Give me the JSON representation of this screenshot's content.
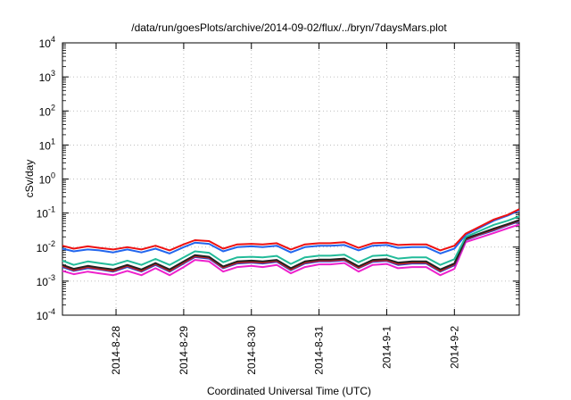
{
  "chart_data": {
    "type": "line",
    "title": "/data/run/goesPlots/archive/2014-09-02/flux/../bryn/7daysMars.plot",
    "xlabel": "Coordinated Universal Time (UTC)",
    "ylabel": "cSv/day",
    "yscale": "log",
    "ylim": [
      0.0001,
      10000
    ],
    "y_tick_labels": [
      {
        "base": "10",
        "exp": "-4"
      },
      {
        "base": "10",
        "exp": "-3"
      },
      {
        "base": "10",
        "exp": "-2"
      },
      {
        "base": "10",
        "exp": "-1"
      },
      {
        "base": "10",
        "exp": "0"
      },
      {
        "base": "10",
        "exp": "1"
      },
      {
        "base": "10",
        "exp": "2"
      },
      {
        "base": "10",
        "exp": "3"
      },
      {
        "base": "10",
        "exp": "4"
      }
    ],
    "x_ticks": [
      "2014-8-28",
      "2014-8-29",
      "2014-8-30",
      "2014-8-31",
      "2014-9-1",
      "2014-9-2"
    ],
    "xlim": [
      "2014-08-27 05:00",
      "2014-09-02 23:00"
    ],
    "grid": true,
    "x": [
      "08-27 05:00",
      "08-27 09:00",
      "08-27 14:00",
      "08-27 18:00",
      "08-27 23:00",
      "08-28 04:00",
      "08-28 09:00",
      "08-28 14:00",
      "08-28 19:00",
      "08-29 00:00",
      "08-29 04:00",
      "08-29 09:00",
      "08-29 14:00",
      "08-29 19:00",
      "08-30 00:00",
      "08-30 04:00",
      "08-30 09:00",
      "08-30 14:00",
      "08-30 19:00",
      "08-31 00:00",
      "08-31 04:00",
      "08-31 09:00",
      "08-31 14:00",
      "08-31 19:00",
      "09-01 00:00",
      "09-01 04:00",
      "09-01 09:00",
      "09-01 14:00",
      "09-01 19:00",
      "09-02 00:00",
      "09-02 04:00",
      "09-02 09:00",
      "09-02 14:00",
      "09-02 19:00",
      "09-02 23:00"
    ],
    "series": [
      {
        "color": "#ee1111",
        "values": [
          0.011,
          0.009,
          0.0105,
          0.0095,
          0.0085,
          0.01,
          0.0085,
          0.011,
          0.008,
          0.012,
          0.016,
          0.015,
          0.009,
          0.012,
          0.0125,
          0.012,
          0.013,
          0.0085,
          0.012,
          0.013,
          0.013,
          0.014,
          0.0095,
          0.013,
          0.0135,
          0.0115,
          0.012,
          0.012,
          0.008,
          0.011,
          0.025,
          0.04,
          0.065,
          0.09,
          0.13
        ]
      },
      {
        "color": "#2266ee",
        "values": [
          0.009,
          0.0075,
          0.0085,
          0.008,
          0.007,
          0.0085,
          0.007,
          0.009,
          0.0065,
          0.01,
          0.0135,
          0.0125,
          0.0075,
          0.01,
          0.0105,
          0.01,
          0.011,
          0.007,
          0.01,
          0.011,
          0.011,
          0.0115,
          0.008,
          0.011,
          0.0115,
          0.0095,
          0.01,
          0.01,
          0.0065,
          0.009,
          0.023,
          0.037,
          0.06,
          0.085,
          0.12
        ]
      },
      {
        "color": "#22bb99",
        "values": [
          0.004,
          0.003,
          0.0038,
          0.0034,
          0.003,
          0.004,
          0.003,
          0.0045,
          0.003,
          0.005,
          0.0075,
          0.0068,
          0.0036,
          0.005,
          0.0052,
          0.005,
          0.0055,
          0.0032,
          0.005,
          0.0056,
          0.0056,
          0.006,
          0.0036,
          0.0055,
          0.0058,
          0.0046,
          0.005,
          0.005,
          0.003,
          0.0044,
          0.02,
          0.03,
          0.045,
          0.06,
          0.08
        ]
      },
      {
        "color": "#222222",
        "values": [
          0.003,
          0.0023,
          0.0028,
          0.0025,
          0.0022,
          0.003,
          0.0022,
          0.0034,
          0.0022,
          0.0038,
          0.0058,
          0.0052,
          0.0027,
          0.0038,
          0.004,
          0.0038,
          0.0042,
          0.0024,
          0.0038,
          0.0043,
          0.0043,
          0.0046,
          0.0027,
          0.0042,
          0.0044,
          0.0035,
          0.0038,
          0.0038,
          0.0022,
          0.0033,
          0.018,
          0.025,
          0.035,
          0.048,
          0.062
        ]
      },
      {
        "color": "#cc2222",
        "values": [
          0.0028,
          0.0021,
          0.0026,
          0.0023,
          0.002,
          0.0028,
          0.002,
          0.0032,
          0.002,
          0.0035,
          0.0054,
          0.0049,
          0.0025,
          0.0035,
          0.0037,
          0.0035,
          0.0039,
          0.0022,
          0.0035,
          0.004,
          0.004,
          0.0043,
          0.0025,
          0.0039,
          0.0041,
          0.0032,
          0.0035,
          0.0035,
          0.002,
          0.0031,
          0.017,
          0.024,
          0.033,
          0.046,
          0.06
        ]
      },
      {
        "color": "#2244cc",
        "values": [
          0.0026,
          0.002,
          0.0024,
          0.0022,
          0.0019,
          0.0026,
          0.0019,
          0.003,
          0.0019,
          0.0033,
          0.0051,
          0.0046,
          0.0024,
          0.0033,
          0.0035,
          0.0033,
          0.0037,
          0.0021,
          0.0033,
          0.0038,
          0.0038,
          0.0041,
          0.0024,
          0.0037,
          0.0039,
          0.003,
          0.0033,
          0.0033,
          0.0019,
          0.0029,
          0.016,
          0.023,
          0.031,
          0.044,
          0.057
        ]
      },
      {
        "color": "#ee22cc",
        "values": [
          0.002,
          0.0016,
          0.0019,
          0.0017,
          0.0015,
          0.002,
          0.0015,
          0.0024,
          0.0015,
          0.0026,
          0.0042,
          0.0038,
          0.0019,
          0.0026,
          0.0028,
          0.0026,
          0.003,
          0.0017,
          0.0026,
          0.0031,
          0.0031,
          0.0034,
          0.0019,
          0.003,
          0.0032,
          0.0024,
          0.0026,
          0.0026,
          0.0015,
          0.0023,
          0.014,
          0.019,
          0.026,
          0.036,
          0.046
        ]
      }
    ]
  }
}
